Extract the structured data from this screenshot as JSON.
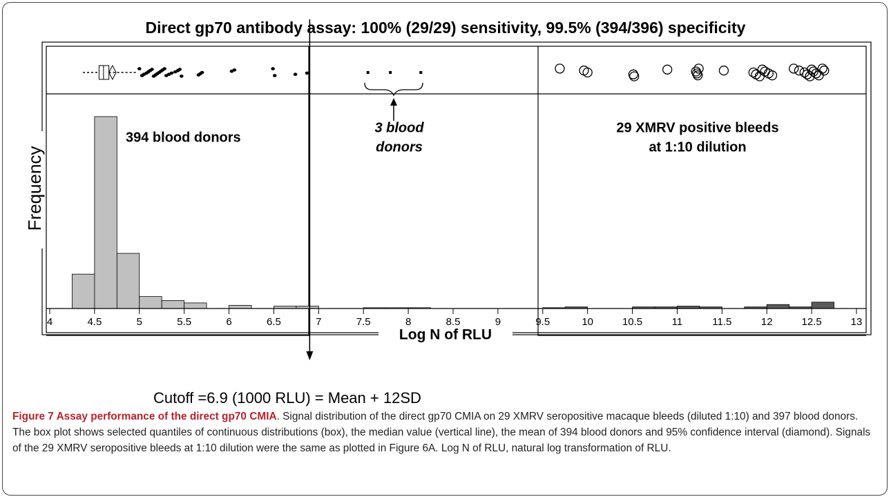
{
  "chart_data": {
    "type": "histogram",
    "title": "Direct gp70 antibody assay: 100% (29/29) sensitivity, 99.5% (394/396) specificity",
    "xlabel": "Log N of RLU",
    "ylabel": "Frequency",
    "xlim": [
      4,
      13
    ],
    "xticks": [
      4,
      4.5,
      5,
      5.5,
      6,
      6.5,
      7,
      7.5,
      8,
      8.5,
      9,
      9.5,
      10,
      10.5,
      11,
      11.5,
      12,
      12.5,
      13
    ],
    "ylim": [
      0,
      265
    ],
    "series": [
      {
        "color": "#c0c0c0",
        "bins": [
          4.25,
          4.5,
          4.75,
          5,
          5.25,
          5.5,
          5.75,
          6,
          6.25,
          6.5,
          6.75,
          7,
          7.25,
          7.5,
          7.75,
          8,
          8.25
        ],
        "values": [
          43,
          240,
          69,
          15,
          10,
          7,
          0,
          4,
          0,
          3,
          3,
          0,
          0,
          1,
          1,
          1
        ]
      },
      {
        "color": "#5a5a5a",
        "bins": [
          9.5,
          9.75,
          10,
          10.25,
          10.5,
          10.75,
          11,
          11.25,
          11.5,
          11.75,
          12,
          12.25,
          12.5,
          12.75
        ],
        "values": [
          1,
          2,
          0,
          0,
          2,
          2,
          3,
          2,
          0,
          2,
          5,
          2,
          8
        ]
      }
    ],
    "boxplot": {
      "whisker_low": 4.37,
      "q1": 4.55,
      "median": 4.6,
      "q3": 4.66,
      "whisker_high": 4.98,
      "mean": 4.7,
      "ci": [
        4.66,
        4.74
      ]
    },
    "donor_points": [
      5.0,
      5.03,
      5.05,
      5.08,
      5.1,
      5.12,
      5.14,
      5.16,
      5.18,
      5.2,
      5.22,
      5.24,
      5.26,
      5.28,
      5.3,
      5.33,
      5.36,
      5.4,
      5.43,
      5.45,
      5.47,
      5.66,
      5.68,
      5.7,
      6.03,
      6.06,
      6.49,
      6.51,
      6.74,
      6.87
    ],
    "low_points": [
      7.55,
      7.8,
      8.14
    ],
    "xmrv_points": [
      9.69,
      9.96,
      10.0,
      10.51,
      10.52,
      10.89,
      11.21,
      11.22,
      11.23,
      11.24,
      11.52,
      11.85,
      11.88,
      11.92,
      11.95,
      11.98,
      12.02,
      12.06,
      12.3,
      12.36,
      12.42,
      12.45,
      12.48,
      12.5,
      12.52,
      12.55,
      12.58,
      12.62,
      12.64
    ],
    "annotations": [
      "394 blood donors",
      "3 blood",
      "donors",
      "29 XMRV positive bleeds",
      "at 1:10 dilution"
    ],
    "cutoff": 6.9,
    "cutoff_label": "Cutoff =6.9 (1000 RLU) = Mean + 12SD"
  },
  "caption": {
    "label": "Figure 7 Assay performance of the direct gp70 CMIA",
    "text": ". Signal distribution of the direct gp70 CMIA on 29 XMRV seropositive macaque bleeds (diluted 1:10) and 397 blood donors. The box plot shows selected quantiles of continuous distributions (box), the median value (vertical line), the mean of 394 blood donors and 95% confidence interval (diamond). Signals of the 29 XMRV seropositive bleeds at 1:10 dilution were the same as plotted in Figure 6A. Log N of RLU, natural log transformation of RLU."
  }
}
